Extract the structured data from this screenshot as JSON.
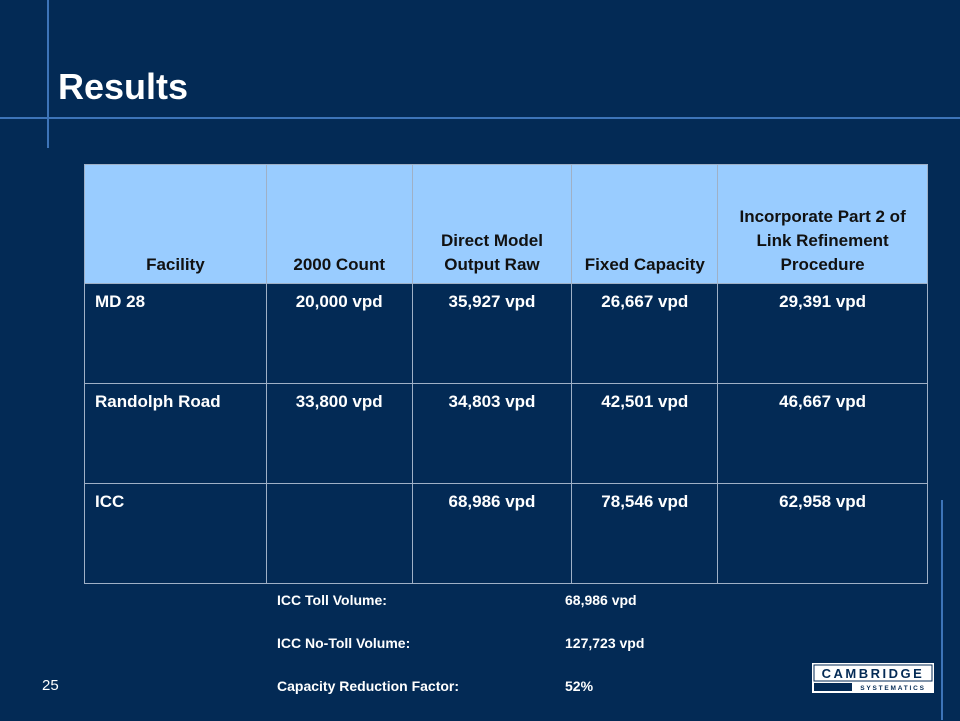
{
  "slide": {
    "title": "Results",
    "page_number": "25"
  },
  "table": {
    "headers": [
      "Facility",
      "2000 Count",
      "Direct Model Output Raw",
      "Fixed Capacity",
      "Incorporate Part 2 of Link Refinement Procedure"
    ],
    "rows": [
      [
        "MD 28",
        "20,000 vpd",
        "35,927 vpd",
        "26,667 vpd",
        "29,391 vpd"
      ],
      [
        "Randolph Road",
        "33,800 vpd",
        "34,803 vpd",
        "42,501 vpd",
        "46,667 vpd"
      ],
      [
        "ICC",
        "",
        "68,986 vpd",
        "78,546 vpd",
        "62,958 vpd"
      ]
    ]
  },
  "notes": [
    {
      "label": "ICC Toll Volume:",
      "value": "68,986 vpd"
    },
    {
      "label": "ICC No-Toll Volume:",
      "value": "127,723 vpd"
    },
    {
      "label": "Capacity Reduction Factor:",
      "value": "52%"
    }
  ],
  "logo": {
    "name": "CAMBRIDGE",
    "tagline": "SYSTEMATICS"
  },
  "colors": {
    "background": "#032a55",
    "header_fill": "#99ccff",
    "accent_line": "#3d74b8"
  }
}
